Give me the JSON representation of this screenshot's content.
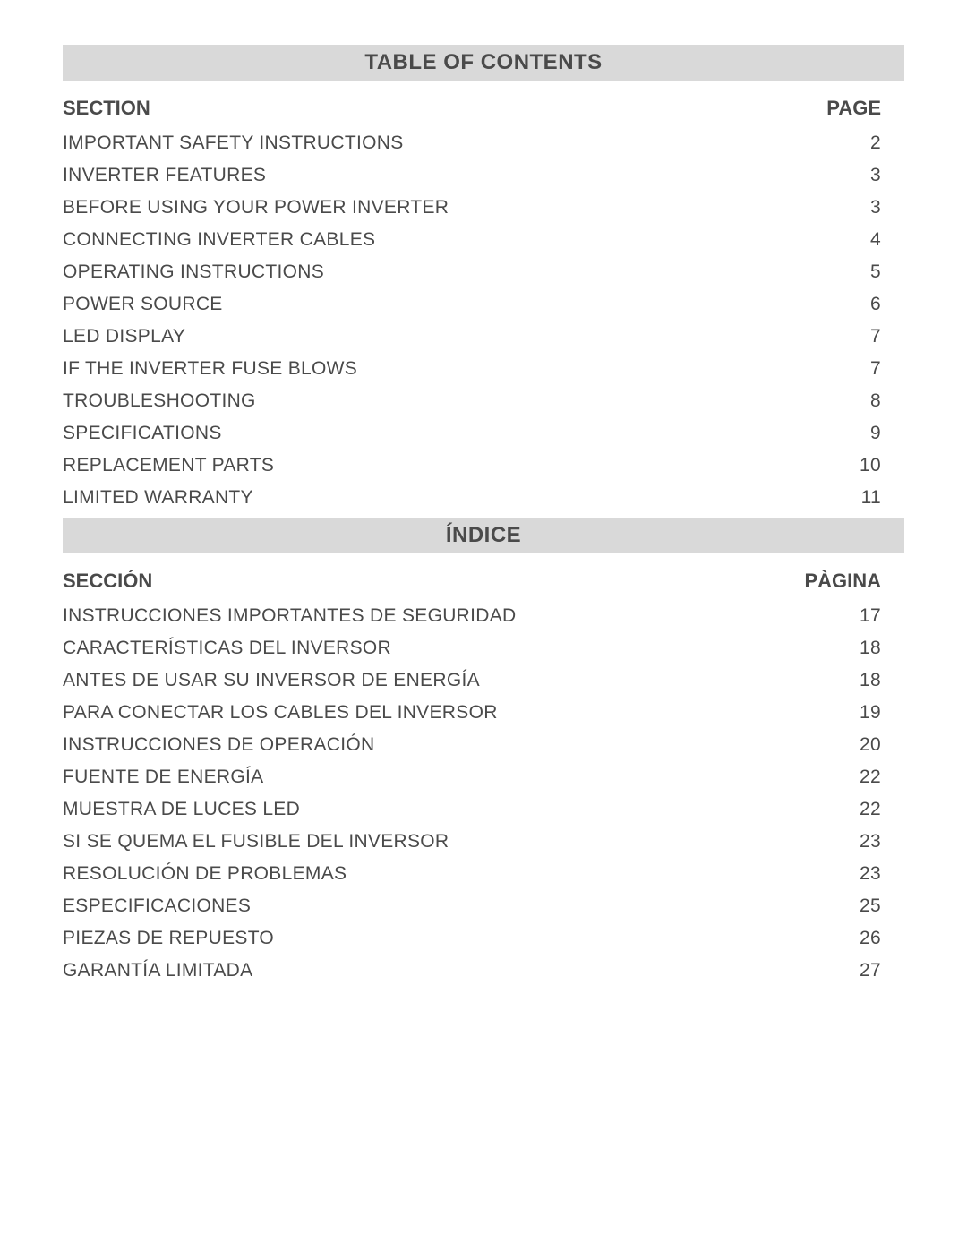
{
  "colors": {
    "background": "#ffffff",
    "title_bar_bg": "#d9d9d9",
    "text": "#4a4a4a"
  },
  "typography": {
    "title_fontsize": 24,
    "header_fontsize": 22,
    "row_fontsize": 21,
    "font_family": "Arial"
  },
  "english": {
    "title": "TABLE OF CONTENTS",
    "section_header": "SECTION",
    "page_header": "PAGE",
    "rows": [
      {
        "section": "IMPORTANT SAFETY INSTRUCTIONS",
        "page": "2"
      },
      {
        "section": "INVERTER FEATURES",
        "page": "3"
      },
      {
        "section": "BEFORE USING YOUR POWER INVERTER",
        "page": "3"
      },
      {
        "section": "CONNECTING INVERTER CABLES",
        "page": "4"
      },
      {
        "section": "OPERATING INSTRUCTIONS",
        "page": "5"
      },
      {
        "section": "POWER SOURCE",
        "page": "6"
      },
      {
        "section": "LED DISPLAY",
        "page": "7"
      },
      {
        "section": "IF THE INVERTER FUSE BLOWS",
        "page": "7"
      },
      {
        "section": "TROUBLESHOOTING",
        "page": "8"
      },
      {
        "section": "SPECIFICATIONS",
        "page": "9"
      },
      {
        "section": "REPLACEMENT PARTS",
        "page": "10"
      },
      {
        "section": "LIMITED WARRANTY",
        "page": "11"
      }
    ]
  },
  "spanish": {
    "title": "ÍNDICE",
    "section_header": "SECCIÓN",
    "page_header": "PÀGINA",
    "rows": [
      {
        "section": "INSTRUCCIONES IMPORTANTES DE SEGURIDAD",
        "page": "17"
      },
      {
        "section": "CARACTERÍSTICAS DEL INVERSOR",
        "page": "18"
      },
      {
        "section": "ANTES DE USAR SU INVERSOR DE ENERGÍA",
        "page": "18"
      },
      {
        "section": "PARA CONECTAR LOS CABLES DEL INVERSOR",
        "page": "19"
      },
      {
        "section": "INSTRUCCIONES DE OPERACIÓN",
        "page": "20"
      },
      {
        "section": "FUENTE DE ENERGÍA",
        "page": "22"
      },
      {
        "section": "MUESTRA DE LUCES LED",
        "page": "22"
      },
      {
        "section": "SI SE QUEMA EL FUSIBLE DEL INVERSOR",
        "page": "23"
      },
      {
        "section": "RESOLUCIÓN DE PROBLEMAS",
        "page": "23"
      },
      {
        "section": "ESPECIFICACIONES",
        "page": "25"
      },
      {
        "section": "PIEZAS DE REPUESTO",
        "page": "26"
      },
      {
        "section": "GARANTÍA LIMITADA",
        "page": "27"
      }
    ]
  }
}
